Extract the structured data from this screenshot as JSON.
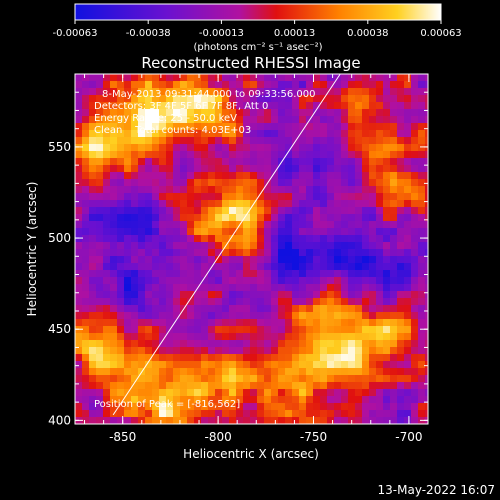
{
  "chart_data": {
    "type": "heatmap",
    "title": "Reconstructed RHESSI Image",
    "xlabel": "Heliocentric X (arcsec)",
    "ylabel": "Heliocentric Y (arcsec)",
    "xlim": [
      -875,
      -690
    ],
    "ylim": [
      398,
      590
    ],
    "x_ticks": [
      -850,
      -800,
      -750,
      -700
    ],
    "y_ticks": [
      400,
      450,
      500,
      550
    ],
    "colorbar": {
      "unit_label": "(photons cm⁻² s⁻¹ asec⁻²)",
      "range": [
        -0.00063,
        0.00063
      ],
      "ticks": [
        "-0.00063",
        "-0.00038",
        "-0.00013",
        "0.00013",
        "0.00038",
        "0.00063"
      ],
      "colors": [
        "#1010e0",
        "#6a10d0",
        "#b010a0",
        "#e01010",
        "#ff8000",
        "#ffd020",
        "#ffffff"
      ]
    },
    "annotations": [
      "8-May-2013 09:31:44.000 to 09:33:56.000",
      "Detectors: 3F 4F 5F 6F 7F 8F, Att 0",
      "Energy Range: 25 - 50.0 keV",
      "Clean    Total counts: 4.03E+03"
    ],
    "peak_label": "Position of Peak = [-816,562]",
    "limb_line": [
      [
        -855,
        403
      ],
      [
        -736,
        590
      ]
    ],
    "bright_regions": [
      {
        "x": -840,
        "y": 568,
        "intensity": 0.0006
      },
      {
        "x": -810,
        "y": 570,
        "intensity": 0.00055
      },
      {
        "x": -865,
        "y": 548,
        "intensity": 0.00045
      },
      {
        "x": -790,
        "y": 520,
        "intensity": 0.0004
      },
      {
        "x": -795,
        "y": 505,
        "intensity": 0.00035
      },
      {
        "x": -860,
        "y": 438,
        "intensity": 0.0005
      },
      {
        "x": -830,
        "y": 412,
        "intensity": 0.0006
      },
      {
        "x": -800,
        "y": 420,
        "intensity": 0.0004
      },
      {
        "x": -765,
        "y": 425,
        "intensity": 0.00045
      },
      {
        "x": -730,
        "y": 435,
        "intensity": 0.0005
      },
      {
        "x": -745,
        "y": 455,
        "intensity": 0.0004
      },
      {
        "x": -705,
        "y": 450,
        "intensity": 0.00035
      },
      {
        "x": -705,
        "y": 525,
        "intensity": 0.00025
      },
      {
        "x": -720,
        "y": 565,
        "intensity": 0.0003
      }
    ],
    "dark_regions": [
      {
        "x": -760,
        "y": 490,
        "intensity": -0.0004
      },
      {
        "x": -725,
        "y": 490,
        "intensity": -0.00035
      },
      {
        "x": -845,
        "y": 470,
        "intensity": -0.0003
      },
      {
        "x": -850,
        "y": 505,
        "intensity": -0.0003
      },
      {
        "x": -760,
        "y": 540,
        "intensity": -0.0002
      },
      {
        "x": -700,
        "y": 480,
        "intensity": -0.00025
      }
    ]
  },
  "footer": {
    "timestamp": "13-May-2022 16:07"
  }
}
